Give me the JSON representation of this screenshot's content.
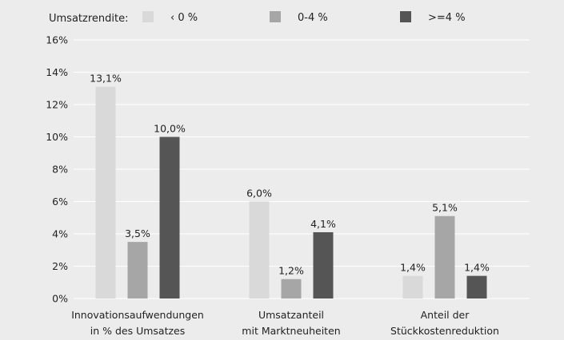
{
  "chart_data": {
    "type": "bar",
    "legend": {
      "title": "Umsatzrendite:",
      "position": "top"
    },
    "categories": [
      [
        "Innovationsaufwendungen",
        "in % des Umsatzes"
      ],
      [
        "Umsatzanteil",
        "mit Marktneuheiten"
      ],
      [
        "Anteil der",
        "Stückkostenreduktion"
      ]
    ],
    "series": [
      {
        "name": "‹ 0 %",
        "color": "#d9d9d9",
        "values": [
          13.1,
          6.0,
          1.4
        ],
        "labels": [
          "13,1%",
          "6,0%",
          "1,4%"
        ]
      },
      {
        "name": "0-4 %",
        "color": "#a6a6a6",
        "values": [
          3.5,
          1.2,
          5.1
        ],
        "labels": [
          "3,5%",
          "1,2%",
          "5,1%"
        ]
      },
      {
        "name": ">=4 %",
        "color": "#555556",
        "values": [
          10.0,
          4.1,
          1.4
        ],
        "labels": [
          "10,0%",
          "4,1%",
          "1,4%"
        ]
      }
    ],
    "y_ticks": [
      "0%",
      "2%",
      "4%",
      "6%",
      "8%",
      "10%",
      "12%",
      "14%",
      "16%"
    ],
    "ylim": [
      0,
      16
    ],
    "grid": true,
    "gridline_color": "#ffffff"
  }
}
